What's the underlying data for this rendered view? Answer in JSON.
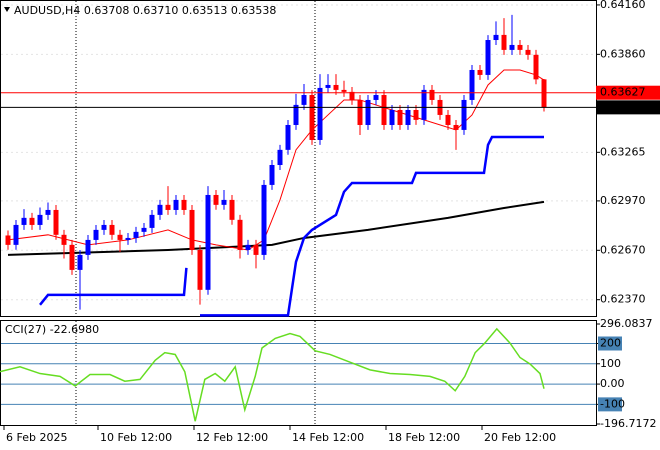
{
  "chart_data": [
    {
      "type": "candlestick",
      "title": "AUDUSD,H4",
      "header": [
        0.63708,
        {
          "value": 0.6371,
          "label": "0.63710"
        },
        0.63513,
        0.63538
      ],
      "up_color": "#0000ff",
      "down_color": "#ff0000",
      "open": [
        0.6276,
        0.62703,
        0.62824,
        0.62867,
        0.62824,
        0.62885,
        0.62915,
        0.62764,
        0.62703,
        0.62551,
        0.62642,
        0.62733,
        0.62794,
        0.62824,
        0.62764,
        0.62733,
        0.62745,
        0.62782,
        0.62806,
        0.62885,
        0.62946,
        0.62915,
        0.62976,
        0.62915,
        0.62672,
        0.6243,
        0.63006,
        0.62946,
        0.62976,
        0.62855,
        0.62672,
        0.62703,
        0.62642,
        0.63067,
        0.63188,
        0.6328,
        0.63431,
        0.63553,
        0.63613,
        0.6334,
        0.63656,
        0.63674,
        0.63644,
        0.63632,
        0.63583,
        0.63431,
        0.63583,
        0.63613,
        0.63431,
        0.63522,
        0.63431,
        0.63522,
        0.63462,
        0.63644,
        0.63583,
        0.63492,
        0.63431,
        0.63401,
        0.63583,
        0.63765,
        0.63735,
        0.63947,
        0.63978,
        0.63887,
        0.63917,
        0.63887,
        0.63857,
        0.63708
      ],
      "high": [
        0.6279,
        0.62854,
        0.6292,
        0.62897,
        0.6293,
        0.6296,
        0.62945,
        0.62794,
        0.62733,
        0.62672,
        0.62763,
        0.62824,
        0.62854,
        0.62854,
        0.62794,
        0.62775,
        0.62812,
        0.62836,
        0.62915,
        0.62976,
        0.6306,
        0.63006,
        0.63006,
        0.62945,
        0.62702,
        0.6306,
        0.63036,
        0.63036,
        0.63006,
        0.62885,
        0.62733,
        0.62733,
        0.63097,
        0.63218,
        0.6331,
        0.63461,
        0.6362,
        0.6368,
        0.63643,
        0.6374,
        0.6374,
        0.6374,
        0.637,
        0.63662,
        0.63613,
        0.63613,
        0.63643,
        0.63643,
        0.63552,
        0.63552,
        0.63552,
        0.63552,
        0.63674,
        0.63674,
        0.63613,
        0.63522,
        0.63461,
        0.63613,
        0.63795,
        0.63795,
        0.63977,
        0.6406,
        0.6408,
        0.641,
        0.63947,
        0.63917,
        0.63887,
        0.6371
      ],
      "low": [
        0.62673,
        0.62673,
        0.62794,
        0.62794,
        0.62794,
        0.62855,
        0.62734,
        0.6262,
        0.62521,
        0.6231,
        0.62612,
        0.62703,
        0.62764,
        0.62734,
        0.6266,
        0.62703,
        0.62715,
        0.62752,
        0.62776,
        0.62855,
        0.62885,
        0.62885,
        0.62885,
        0.62642,
        0.6234,
        0.624,
        0.62916,
        0.62916,
        0.62825,
        0.6262,
        0.62642,
        0.6256,
        0.62612,
        0.63037,
        0.63158,
        0.6325,
        0.63401,
        0.63523,
        0.6331,
        0.6331,
        0.63626,
        0.63614,
        0.63602,
        0.63553,
        0.6337,
        0.63401,
        0.63553,
        0.63401,
        0.63401,
        0.63401,
        0.63401,
        0.63432,
        0.63432,
        0.63553,
        0.63462,
        0.63401,
        0.6328,
        0.63371,
        0.63553,
        0.63705,
        0.63705,
        0.63917,
        0.63857,
        0.63857,
        0.63857,
        0.63827,
        0.63678,
        0.63513
      ],
      "close": [
        0.62703,
        0.62824,
        0.62867,
        0.62824,
        0.62885,
        0.62915,
        0.62764,
        0.62703,
        0.62551,
        0.62642,
        0.62733,
        0.62794,
        0.62824,
        0.62764,
        0.62733,
        0.62745,
        0.62782,
        0.62806,
        0.62885,
        0.62946,
        0.62915,
        0.62976,
        0.62915,
        0.62672,
        0.6243,
        0.63006,
        0.62946,
        0.62976,
        0.62855,
        0.62672,
        0.62703,
        0.62642,
        0.63067,
        0.63188,
        0.6328,
        0.63431,
        0.63553,
        0.63613,
        0.6334,
        0.63656,
        0.63674,
        0.63644,
        0.63632,
        0.63583,
        0.63431,
        0.63583,
        0.63613,
        0.63431,
        0.63522,
        0.63431,
        0.63522,
        0.63462,
        0.63644,
        0.63583,
        0.63492,
        0.63431,
        0.63401,
        0.63583,
        0.63765,
        0.63735,
        0.63947,
        0.63978,
        0.63887,
        0.63917,
        0.63887,
        0.63857,
        0.63708,
        0.63538
      ],
      "series": [
        {
          "color": "#000000",
          "width": 2,
          "x": [
            0,
            20,
            33,
            37,
            45,
            55,
            62,
            67
          ],
          "values": [
            0.62642,
            0.62672,
            0.62703,
            0.62745,
            0.62794,
            0.62867,
            0.62927,
            0.62964
          ]
        },
        {
          "color": "#0000ff",
          "width": 2.5,
          "x": [
            4,
            5,
            22,
            22.3,
            23,
            24,
            35,
            36,
            37,
            38,
            41,
            42,
            43,
            50.5,
            51,
            59.5,
            60,
            60.5,
            67
          ],
          "values": [
            0.62339,
            0.62399,
            0.62399,
            0.62563,
            null,
            0.62275,
            0.62275,
            0.626,
            0.62745,
            0.62794,
            0.62885,
            0.63025,
            0.63079,
            0.63079,
            0.6314,
            0.6314,
            0.6331,
            0.63358,
            0.63358
          ]
        },
        {
          "color": "#ff0000",
          "width": 1,
          "x": [
            0,
            5,
            10,
            15,
            20,
            23,
            26,
            30,
            32,
            34,
            36,
            38,
            40,
            42,
            44,
            48,
            52,
            56,
            58,
            60,
            62,
            64,
            66,
            67
          ],
          "values": [
            0.62733,
            0.62764,
            0.62703,
            0.62733,
            0.62794,
            0.62733,
            0.62703,
            0.62672,
            0.62733,
            0.62976,
            0.6328,
            0.63401,
            0.63492,
            0.63583,
            0.63583,
            0.63522,
            0.63462,
            0.63401,
            0.63492,
            0.63674,
            0.63765,
            0.63765,
            0.63735,
            0.63704
          ]
        }
      ],
      "hlines": [
        {
          "value": 0.63627,
          "color": "#ff0000"
        },
        {
          "value": 0.63538,
          "color": "#000000"
        }
      ],
      "xlim": [
        -1,
        73.5
      ],
      "ylim": [
        0.62271,
        0.6419
      ],
      "yticks": [
        {
          "value": 0.6416,
          "label": "0.64160"
        },
        {
          "value": 0.6386,
          "label": "0.63860"
        },
        0.63265,
        {
          "value": 0.6297,
          "label": "0.62970"
        },
        {
          "value": 0.6267,
          "label": "0.62670"
        },
        {
          "value": 0.6237,
          "label": "0.62370"
        }
      ],
      "xticks": [
        {
          "value": -0.5,
          "label": "6 Feb 2025"
        },
        {
          "value": 11.25,
          "label": "10 Feb 12:00"
        },
        {
          "value": 23.25,
          "label": "12 Feb 12:00"
        },
        {
          "value": 35.25,
          "label": "14 Feb 12:00"
        },
        {
          "value": 47.25,
          "label": "18 Feb 12:00"
        },
        {
          "value": 59.25,
          "label": "20 Feb 12:00"
        }
      ]
    },
    {
      "type": "line",
      "title": "CCI(27)",
      "current": {
        "value": -22.698,
        "label": "-22.6980"
      },
      "series": [
        {
          "color": "#66dd22",
          "width": 1.5,
          "x": [
            -1,
            1.5,
            4,
            6.5,
            8.4,
            10.25,
            12.75,
            14.6,
            16.5,
            18.4,
            19.6,
            20.9,
            22.1,
            23.4,
            24.6,
            25.9,
            27.1,
            28.4,
            29.6,
            30.9,
            31.75,
            33.4,
            35.25,
            36.5,
            38.4,
            40.25,
            42.75,
            45.25,
            47.75,
            50.25,
            52.75,
            54.6,
            55.9,
            57.1,
            58.4,
            59.6,
            61.1,
            62.75,
            64,
            65.25,
            66.5,
            67
          ],
          "values": [
            61,
            85,
            52,
            38,
            -9,
            47,
            47,
            14,
            23,
            117,
            155,
            146,
            61,
            -183,
            23,
            52,
            14,
            85,
            -127,
            38,
            178,
            225,
            249,
            235,
            164,
            146,
            108,
            70,
            52,
            47,
            38,
            14,
            -33,
            38,
            155,
            202,
            272,
            202,
            131,
            99,
            52,
            -22.698
          ]
        }
      ],
      "levels": [
        200,
        100,
        0,
        -100
      ],
      "level_color": "#4682b4",
      "xlim": [
        -1,
        73.5
      ],
      "ylim": [
        -196.7172,
        296.0837
      ],
      "yticks": [
        296.0837,
        {
          "value": 200,
          "label": "200",
          "boxed": true
        },
        100,
        {
          "value": 0,
          "label": "0.00"
        },
        {
          "value": -100,
          "label": "-100",
          "boxed": true
        },
        -196.7172
      ]
    }
  ]
}
